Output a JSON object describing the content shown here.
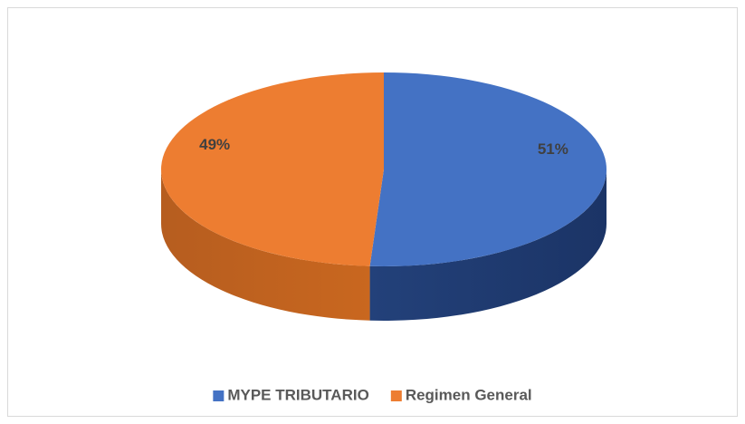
{
  "chart_data": {
    "type": "pie3d",
    "series": [
      {
        "name": "MYPE TRIBUTARIO",
        "color": "#4472c4",
        "values": [
          51
        ],
        "value_labels": [
          "51%"
        ]
      },
      {
        "name": "Regimen General",
        "color": "#ed7d31",
        "values": [
          49
        ],
        "value_labels": [
          "49%"
        ]
      }
    ],
    "legend": "bottom"
  }
}
